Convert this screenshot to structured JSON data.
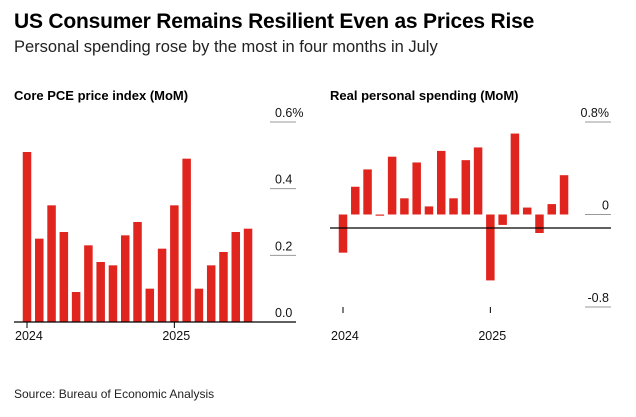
{
  "header": {
    "title": "US Consumer Remains Resilient Even as Prices Rise",
    "subtitle": "Personal spending rose by the most in four months in July"
  },
  "footer": {
    "source": "Source: Bureau of Economic Analysis"
  },
  "colors": {
    "bar": "#e0251f",
    "axis": "#000000",
    "grid": "#999999"
  },
  "chart_data": [
    {
      "type": "bar",
      "title": "Core PCE price index (MoM)",
      "y_ticks": [
        "0.6%",
        "0.4",
        "0.2",
        "0.0"
      ],
      "y_tick_values": [
        0.6,
        0.4,
        0.2,
        0.0
      ],
      "ylim": [
        0,
        0.6
      ],
      "x_tick_labels": [
        "2024",
        "2025"
      ],
      "x_tick_indices": [
        0,
        12
      ],
      "grid": "short right-side tick lines",
      "values": [
        0.51,
        0.25,
        0.35,
        0.27,
        0.09,
        0.23,
        0.18,
        0.17,
        0.26,
        0.3,
        0.1,
        0.22,
        0.35,
        0.49,
        0.1,
        0.17,
        0.21,
        0.27,
        0.28
      ]
    },
    {
      "type": "bar",
      "title": "Real personal spending (MoM)",
      "y_ticks": [
        "0.8%",
        "0",
        "-0.8"
      ],
      "y_tick_values": [
        0.8,
        0.0,
        -0.8
      ],
      "ylim": [
        -0.8,
        0.8
      ],
      "x_tick_labels": [
        "2024",
        "2025"
      ],
      "x_tick_indices": [
        0,
        12
      ],
      "grid": "short right-side tick lines",
      "values": [
        -0.33,
        0.24,
        0.39,
        0.0,
        0.5,
        0.14,
        0.45,
        0.07,
        0.55,
        0.14,
        0.47,
        0.58,
        -0.57,
        -0.09,
        0.7,
        0.06,
        -0.16,
        0.09,
        0.34
      ]
    }
  ]
}
